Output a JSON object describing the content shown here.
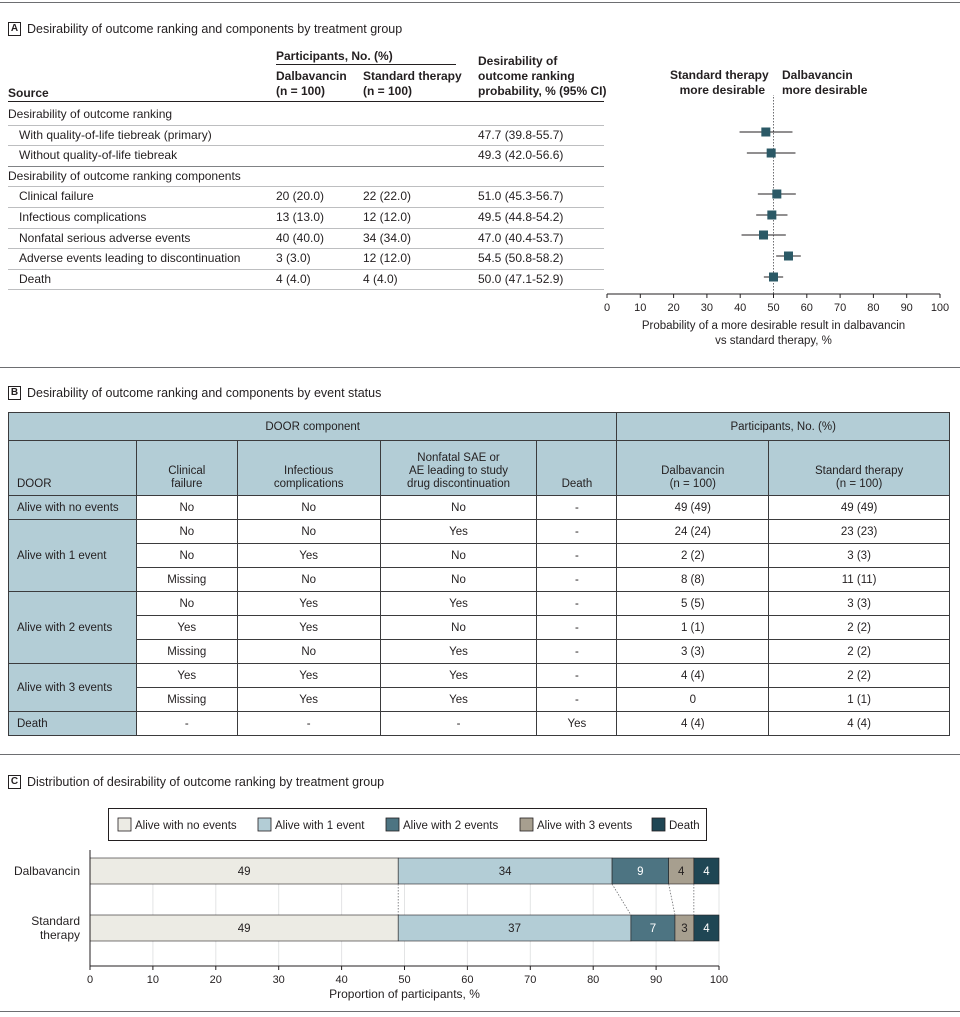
{
  "panel_a": {
    "letter": "A",
    "title": "Desirability of outcome ranking and components by treatment group",
    "participants_header": "Participants, No. (%)",
    "col_dalba_1": "Dalbavancin",
    "col_dalba_2": "(n = 100)",
    "col_std_1": "Standard therapy",
    "col_std_2": "(n = 100)",
    "col_prob_1": "Desirability of",
    "col_prob_2": "outcome ranking",
    "col_prob_3": "probability, % (95% CI)",
    "col_source": "Source",
    "favor_left_1": "Standard therapy",
    "favor_left_2": "more desirable",
    "favor_right_1": "Dalbavancin",
    "favor_right_2": "more desirable",
    "rows": [
      {
        "label": "Desirability of outcome ranking",
        "section": true,
        "dalba": "",
        "std": "",
        "prob": ""
      },
      {
        "label": "With quality-of-life tiebreak (primary)",
        "section": false,
        "dalba": "",
        "std": "",
        "prob": "47.7 (39.8-55.7)"
      },
      {
        "label": "Without quality-of-life tiebreak",
        "section": false,
        "dalba": "",
        "std": "",
        "prob": "49.3 (42.0-56.6)"
      },
      {
        "label": "Desirability  of outcome ranking components",
        "section": true,
        "dalba": "",
        "std": "",
        "prob": ""
      },
      {
        "label": "Clinical failure",
        "section": false,
        "dalba": "20 (20.0)",
        "std": "22 (22.0)",
        "prob": "51.0 (45.3-56.7)"
      },
      {
        "label": "Infectious complications",
        "section": false,
        "dalba": "13 (13.0)",
        "std": "12 (12.0)",
        "prob": "49.5 (44.8-54.2)"
      },
      {
        "label": "Nonfatal serious adverse events",
        "section": false,
        "dalba": "40 (40.0)",
        "std": "34 (34.0)",
        "prob": "47.0 (40.4-53.7)"
      },
      {
        "label": "Adverse events leading to discontinuation",
        "section": false,
        "dalba": "3 (3.0)",
        "std": "12 (12.0)",
        "prob": "54.5 (50.8-58.2)"
      },
      {
        "label": "Death",
        "section": false,
        "dalba": "4 (4.0)",
        "std": "4 (4.0)",
        "prob": "50.0 (47.1-52.9)"
      }
    ]
  },
  "panel_b": {
    "letter": "B",
    "title": "Desirability of outcome ranking and components by event status",
    "group_header_left": "DOOR component",
    "group_header_right": "Participants, No. (%)",
    "col_door": "DOOR",
    "col_clinical_1": "Clinical",
    "col_clinical_2": "failure",
    "col_infect_1": "Infectious",
    "col_infect_2": "complications",
    "col_sae_1": "Nonfatal SAE or",
    "col_sae_2": "AE leading to study",
    "col_sae_3": "drug discontinuation",
    "col_death": "Death",
    "col_dalba_1": "Dalbavancin",
    "col_dalba_2": "(n = 100)",
    "col_std_1": "Standard therapy",
    "col_std_2": "(n = 100)",
    "groups": [
      {
        "label": "Alive with no events",
        "rows": [
          [
            "No",
            "No",
            "No",
            "-",
            "49 (49)",
            "49 (49)"
          ]
        ]
      },
      {
        "label": "Alive with 1 event",
        "rows": [
          [
            "No",
            "No",
            "Yes",
            "-",
            "24 (24)",
            "23 (23)"
          ],
          [
            "No",
            "Yes",
            "No",
            "-",
            "2 (2)",
            "3 (3)"
          ],
          [
            "Missing",
            "No",
            "No",
            "-",
            "8 (8)",
            "11 (11)"
          ]
        ]
      },
      {
        "label": "Alive with 2 events",
        "rows": [
          [
            "No",
            "Yes",
            "Yes",
            "-",
            "5 (5)",
            "3 (3)"
          ],
          [
            "Yes",
            "Yes",
            "No",
            "-",
            "1 (1)",
            "2 (2)"
          ],
          [
            "Missing",
            "No",
            "Yes",
            "-",
            "3 (3)",
            "2 (2)"
          ]
        ]
      },
      {
        "label": "Alive with 3 events",
        "rows": [
          [
            "Yes",
            "Yes",
            "Yes",
            "-",
            "4 (4)",
            "2 (2)"
          ],
          [
            "Missing",
            "Yes",
            "Yes",
            "-",
            "0",
            "1 (1)"
          ]
        ]
      },
      {
        "label": "Death",
        "rows": [
          [
            "-",
            "-",
            "-",
            "Yes",
            "4 (4)",
            "4 (4)"
          ]
        ]
      }
    ]
  },
  "panel_c": {
    "letter": "C",
    "title": "Distribution of desirability of outcome ranking by treatment group"
  },
  "colors": {
    "marker": "#2b5966",
    "no_events": "#ecebe4",
    "one_event": "#b3cdd6",
    "two_events": "#4d7482",
    "three_events": "#a79f8f",
    "death": "#1f4654",
    "header_fill": "#b3cdd6"
  },
  "chart_data": [
    {
      "type": "forest",
      "title": "Desirability of outcome ranking probability",
      "xlabel": "Probability of a more desirable result in dalbavancin vs standard therapy, %",
      "xlabel_line1": "Probability of a more desirable result in dalbavancin",
      "xlabel_line2": "vs standard therapy, %",
      "xlim": [
        0,
        100
      ],
      "xticks": [
        0,
        10,
        20,
        30,
        40,
        50,
        60,
        70,
        80,
        90,
        100
      ],
      "reference_line": 50,
      "points": [
        {
          "label": "With quality-of-life tiebreak (primary)",
          "estimate": 47.7,
          "lower": 39.8,
          "upper": 55.7
        },
        {
          "label": "Without quality-of-life tiebreak",
          "estimate": 49.3,
          "lower": 42.0,
          "upper": 56.6
        },
        {
          "label": "Clinical failure",
          "estimate": 51.0,
          "lower": 45.3,
          "upper": 56.7
        },
        {
          "label": "Infectious complications",
          "estimate": 49.5,
          "lower": 44.8,
          "upper": 54.2
        },
        {
          "label": "Nonfatal serious adverse events",
          "estimate": 47.0,
          "lower": 40.4,
          "upper": 53.7
        },
        {
          "label": "Adverse events leading to discontinuation",
          "estimate": 54.5,
          "lower": 50.8,
          "upper": 58.2
        },
        {
          "label": "Death",
          "estimate": 50.0,
          "lower": 47.1,
          "upper": 52.9
        }
      ]
    },
    {
      "type": "bar",
      "orientation": "horizontal",
      "stacked": true,
      "title": "Distribution of desirability of outcome ranking by treatment group",
      "xlabel": "Proportion of participants, %",
      "xlim": [
        0,
        100
      ],
      "xticks": [
        0,
        10,
        20,
        30,
        40,
        50,
        60,
        70,
        80,
        90,
        100
      ],
      "categories": [
        "Dalbavancin",
        "Standard therapy"
      ],
      "category_lines": [
        [
          "Dalbavancin"
        ],
        [
          "Standard",
          "therapy"
        ]
      ],
      "legend_placement": "top",
      "series": [
        {
          "name": "Alive with no events",
          "values": [
            49,
            49
          ],
          "color": "#ecebe4",
          "label_color": "#231f20"
        },
        {
          "name": "Alive with 1 event",
          "values": [
            34,
            37
          ],
          "color": "#b3cdd6",
          "label_color": "#231f20"
        },
        {
          "name": "Alive with 2 events",
          "values": [
            9,
            7
          ],
          "color": "#4d7482",
          "label_color": "#ffffff"
        },
        {
          "name": "Alive with 3 events",
          "values": [
            4,
            3
          ],
          "color": "#a79f8f",
          "label_color": "#231f20"
        },
        {
          "name": "Death",
          "values": [
            4,
            4
          ],
          "color": "#1f4654",
          "label_color": "#ffffff"
        }
      ]
    }
  ]
}
